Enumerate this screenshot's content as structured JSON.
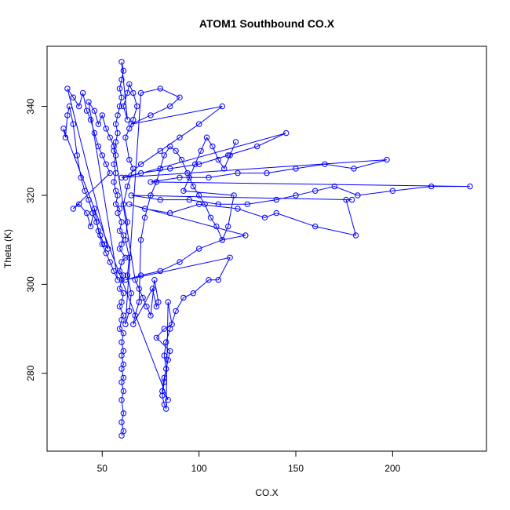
{
  "chart_data": {
    "type": "scatter",
    "title": "ATOM1 Southbound CO.X",
    "xlabel": "CO.X",
    "ylabel": "Theta (K)",
    "xlim": [
      21.5,
      248.5
    ],
    "ylim": [
      262.5,
      353.5
    ],
    "xticks": [
      50,
      100,
      150,
      200
    ],
    "yticks": [
      280,
      300,
      320,
      340
    ],
    "grid": false,
    "legend": "none",
    "colors": {
      "series": "#0000ff",
      "axis": "#000000",
      "background": "#ffffff"
    },
    "series": [
      {
        "values": [
          [
            60,
            266
          ],
          [
            61,
            267
          ],
          [
            60,
            269
          ],
          [
            61,
            271
          ],
          [
            60,
            274
          ],
          [
            61,
            276
          ],
          [
            60,
            278
          ],
          [
            61,
            279
          ],
          [
            60,
            281
          ],
          [
            61,
            282
          ],
          [
            60,
            284
          ],
          [
            61,
            285
          ],
          [
            60,
            287
          ],
          [
            61,
            289
          ],
          [
            59,
            290
          ],
          [
            60,
            292
          ],
          [
            61,
            293
          ],
          [
            59,
            295
          ],
          [
            60,
            296
          ],
          [
            61,
            298
          ],
          [
            59,
            299
          ],
          [
            60,
            301
          ],
          [
            61,
            302
          ],
          [
            59,
            303
          ],
          [
            60,
            305
          ],
          [
            62,
            306
          ],
          [
            59,
            308
          ],
          [
            60,
            309
          ],
          [
            61,
            311
          ],
          [
            59,
            312
          ],
          [
            60,
            314
          ],
          [
            58,
            316
          ],
          [
            59,
            317
          ],
          [
            57,
            318
          ],
          [
            58,
            320
          ],
          [
            57,
            321
          ],
          [
            56,
            323
          ],
          [
            57,
            325
          ],
          [
            56,
            327
          ],
          [
            57,
            329
          ],
          [
            56,
            330
          ],
          [
            57,
            332
          ],
          [
            58,
            334
          ],
          [
            57,
            336
          ],
          [
            58,
            338
          ],
          [
            59,
            340
          ],
          [
            60,
            342
          ],
          [
            59,
            344
          ],
          [
            60,
            346
          ],
          [
            61,
            348
          ],
          [
            60,
            350
          ],
          [
            63,
            337
          ],
          [
            61,
            340
          ],
          [
            63,
            343
          ],
          [
            64,
            345
          ],
          [
            66,
            343
          ],
          [
            68,
            340
          ],
          [
            66,
            337
          ],
          [
            64,
            335
          ],
          [
            62,
            333
          ],
          [
            64,
            328
          ],
          [
            66,
            326
          ],
          [
            63,
            322
          ],
          [
            61,
            318
          ],
          [
            63,
            314
          ],
          [
            62,
            310
          ],
          [
            64,
            306
          ],
          [
            63,
            302
          ],
          [
            65,
            298
          ],
          [
            64,
            294
          ],
          [
            62,
            291
          ],
          [
            70,
            343
          ],
          [
            80,
            344
          ],
          [
            90,
            342
          ],
          [
            85,
            340
          ],
          [
            75,
            338
          ],
          [
            65,
            336
          ],
          [
            112,
            340
          ],
          [
            100,
            336
          ],
          [
            90,
            333
          ],
          [
            80,
            330
          ],
          [
            70,
            327
          ],
          [
            62,
            324
          ],
          [
            145,
            334
          ],
          [
            130,
            331
          ],
          [
            115,
            329
          ],
          [
            100,
            327
          ],
          [
            85,
            326
          ],
          [
            70,
            325
          ],
          [
            60,
            324
          ],
          [
            197,
            328
          ],
          [
            180,
            326
          ],
          [
            165,
            327
          ],
          [
            150,
            326
          ],
          [
            135,
            325
          ],
          [
            120,
            325
          ],
          [
            105,
            324
          ],
          [
            90,
            324
          ],
          [
            75,
            323
          ],
          [
            240,
            322
          ],
          [
            220,
            322
          ],
          [
            200,
            321
          ],
          [
            182,
            320
          ],
          [
            170,
            322
          ],
          [
            160,
            321
          ],
          [
            150,
            320
          ],
          [
            140,
            319
          ],
          [
            125,
            318
          ],
          [
            110,
            318
          ],
          [
            95,
            319
          ],
          [
            80,
            319
          ],
          [
            65,
            320
          ],
          [
            179,
            319
          ],
          [
            176,
            319
          ],
          [
            181,
            311
          ],
          [
            160,
            313
          ],
          [
            140,
            316
          ],
          [
            134,
            315
          ],
          [
            120,
            317
          ],
          [
            100,
            318
          ],
          [
            85,
            316
          ],
          [
            72,
            317
          ],
          [
            64,
            318
          ],
          [
            124,
            311
          ],
          [
            112,
            310
          ],
          [
            100,
            308
          ],
          [
            90,
            305
          ],
          [
            80,
            303
          ],
          [
            70,
            302
          ],
          [
            62,
            301
          ],
          [
            116,
            306
          ],
          [
            110,
            301
          ],
          [
            105,
            301
          ],
          [
            97,
            298
          ],
          [
            92,
            297
          ],
          [
            88,
            294
          ],
          [
            85,
            290
          ],
          [
            83,
            287
          ],
          [
            82,
            284
          ],
          [
            83,
            281
          ],
          [
            82,
            278
          ],
          [
            81,
            275
          ],
          [
            82,
            273
          ],
          [
            83,
            272
          ],
          [
            84,
            296
          ],
          [
            86,
            291
          ],
          [
            82,
            290
          ],
          [
            78,
            288
          ],
          [
            85,
            285
          ],
          [
            84,
            283
          ],
          [
            82,
            279
          ],
          [
            81,
            276
          ],
          [
            84,
            274
          ],
          [
            30,
            335
          ],
          [
            31,
            333
          ],
          [
            32,
            338
          ],
          [
            33,
            340
          ],
          [
            35,
            336
          ],
          [
            37,
            329
          ],
          [
            39,
            324
          ],
          [
            41,
            321
          ],
          [
            43,
            319
          ],
          [
            45,
            316
          ],
          [
            47,
            314
          ],
          [
            49,
            311
          ],
          [
            51,
            309
          ],
          [
            53,
            308
          ],
          [
            32,
            344
          ],
          [
            35,
            342
          ],
          [
            38,
            340
          ],
          [
            40,
            343
          ],
          [
            42,
            339
          ],
          [
            44,
            337
          ],
          [
            46,
            334
          ],
          [
            48,
            331
          ],
          [
            50,
            329
          ],
          [
            52,
            327
          ],
          [
            54,
            325
          ],
          [
            35,
            317
          ],
          [
            38,
            318
          ],
          [
            42,
            316
          ],
          [
            44,
            313
          ],
          [
            46,
            317
          ],
          [
            48,
            312
          ],
          [
            50,
            309
          ],
          [
            52,
            307
          ],
          [
            54,
            305
          ],
          [
            56,
            303
          ],
          [
            58,
            301
          ],
          [
            43,
            341
          ],
          [
            46,
            339
          ],
          [
            48,
            336
          ],
          [
            50,
            338
          ],
          [
            52,
            335
          ],
          [
            54,
            333
          ],
          [
            56,
            331
          ],
          [
            67,
            301
          ],
          [
            69,
            299
          ],
          [
            71,
            297
          ],
          [
            73,
            295
          ],
          [
            75,
            293
          ],
          [
            77,
            301
          ],
          [
            79,
            296
          ],
          [
            78,
            295
          ],
          [
            76,
            299
          ],
          [
            66,
            291
          ],
          [
            67,
            293
          ],
          [
            69,
            296
          ],
          [
            70,
            310
          ],
          [
            72,
            315
          ],
          [
            75,
            320
          ],
          [
            78,
            323
          ],
          [
            80,
            326
          ],
          [
            82,
            329
          ],
          [
            85,
            331
          ],
          [
            88,
            330
          ],
          [
            91,
            328
          ],
          [
            94,
            325
          ],
          [
            97,
            322
          ],
          [
            100,
            320
          ],
          [
            103,
            318
          ],
          [
            106,
            315
          ],
          [
            109,
            313
          ],
          [
            112,
            310
          ],
          [
            115,
            313
          ],
          [
            118,
            320
          ],
          [
            92,
            321
          ],
          [
            95,
            324
          ],
          [
            98,
            327
          ],
          [
            101,
            330
          ],
          [
            104,
            333
          ],
          [
            107,
            331
          ],
          [
            110,
            328
          ],
          [
            113,
            326
          ],
          [
            116,
            329
          ],
          [
            119,
            332
          ]
        ]
      }
    ]
  }
}
